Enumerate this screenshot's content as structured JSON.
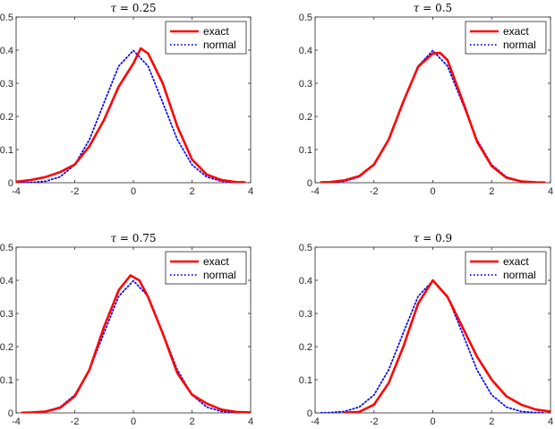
{
  "chart_data": [
    {
      "type": "line",
      "title_symbol": "τ",
      "title_value": "= 0.25",
      "xlim": [
        -4,
        4
      ],
      "ylim": [
        0,
        0.5
      ],
      "xticks": [
        "-4",
        "-2",
        "0",
        "2",
        "4"
      ],
      "yticks": [
        "0",
        "0.1",
        "0.2",
        "0.3",
        "0.4",
        "0.5"
      ],
      "legend": [
        "exact",
        "normal"
      ],
      "series": [
        {
          "name": "exact",
          "color": "#ff0000",
          "style": "solid",
          "x": [
            -4,
            -3.5,
            -3,
            -2.5,
            -2,
            -1.5,
            -1,
            -0.5,
            0,
            0.25,
            0.5,
            1,
            1.5,
            2,
            2.5,
            3,
            3.5,
            3.8
          ],
          "y": [
            0.003,
            0.008,
            0.017,
            0.032,
            0.055,
            0.11,
            0.19,
            0.29,
            0.36,
            0.405,
            0.39,
            0.3,
            0.17,
            0.07,
            0.025,
            0.008,
            0.002,
            0.001
          ]
        },
        {
          "name": "normal",
          "color": "#0000ff",
          "style": "dotted",
          "x": [
            -4,
            -3.5,
            -3,
            -2.5,
            -2,
            -1.5,
            -1,
            -0.5,
            0,
            0.5,
            1,
            1.5,
            2,
            2.5,
            3,
            3.5,
            3.8
          ],
          "y": [
            0.0001,
            0.0009,
            0.0044,
            0.0175,
            0.054,
            0.13,
            0.242,
            0.352,
            0.399,
            0.352,
            0.242,
            0.13,
            0.054,
            0.0175,
            0.0044,
            0.0009,
            0.0003
          ]
        }
      ]
    },
    {
      "type": "line",
      "title_symbol": "τ",
      "title_value": "= 0.5",
      "xlim": [
        -4,
        4
      ],
      "ylim": [
        0,
        0.5
      ],
      "xticks": [
        "-4",
        "-2",
        "0",
        "2",
        "4"
      ],
      "yticks": [
        "0",
        "0.1",
        "0.2",
        "0.3",
        "0.4",
        "0.5"
      ],
      "legend": [
        "exact",
        "normal"
      ],
      "series": [
        {
          "name": "exact",
          "color": "#ff0000",
          "style": "solid",
          "x": [
            -3.8,
            -3.5,
            -3,
            -2.5,
            -2,
            -1.5,
            -1,
            -0.5,
            0,
            0.25,
            0.5,
            1,
            1.5,
            2,
            2.5,
            3,
            3.5,
            3.8
          ],
          "y": [
            0.001,
            0.002,
            0.007,
            0.02,
            0.055,
            0.13,
            0.245,
            0.35,
            0.39,
            0.392,
            0.37,
            0.25,
            0.125,
            0.05,
            0.015,
            0.004,
            0.001,
            0.0005
          ]
        },
        {
          "name": "normal",
          "color": "#0000ff",
          "style": "dotted",
          "x": [
            -3.8,
            -3.5,
            -3,
            -2.5,
            -2,
            -1.5,
            -1,
            -0.5,
            0,
            0.5,
            1,
            1.5,
            2,
            2.5,
            3,
            3.5,
            3.8
          ],
          "y": [
            0.0003,
            0.0009,
            0.0044,
            0.0175,
            0.054,
            0.13,
            0.242,
            0.352,
            0.399,
            0.352,
            0.242,
            0.13,
            0.054,
            0.0175,
            0.0044,
            0.0009,
            0.0003
          ]
        }
      ]
    },
    {
      "type": "line",
      "title_symbol": "τ",
      "title_value": "= 0.75",
      "xlim": [
        -4,
        4
      ],
      "ylim": [
        0,
        0.5
      ],
      "xticks": [
        "-4",
        "-2",
        "0",
        "2",
        "4"
      ],
      "yticks": [
        "0",
        "0.1",
        "0.2",
        "0.3",
        "0.4",
        "0.5"
      ],
      "legend": [
        "exact",
        "normal"
      ],
      "series": [
        {
          "name": "exact",
          "color": "#ff0000",
          "style": "solid",
          "x": [
            -3.8,
            -3.5,
            -3,
            -2.5,
            -2,
            -1.5,
            -1,
            -0.5,
            -0.1,
            0.2,
            0.5,
            1,
            1.5,
            2,
            2.5,
            3,
            3.5,
            4
          ],
          "y": [
            0.0005,
            0.001,
            0.004,
            0.015,
            0.05,
            0.13,
            0.26,
            0.37,
            0.415,
            0.4,
            0.35,
            0.24,
            0.12,
            0.055,
            0.028,
            0.01,
            0.003,
            0.001
          ]
        },
        {
          "name": "normal",
          "color": "#0000ff",
          "style": "dotted",
          "x": [
            -3.8,
            -3.5,
            -3,
            -2.5,
            -2,
            -1.5,
            -1,
            -0.5,
            0,
            0.5,
            1,
            1.5,
            2,
            2.5,
            3,
            3.5,
            3.8
          ],
          "y": [
            0.0003,
            0.0009,
            0.0044,
            0.0175,
            0.054,
            0.13,
            0.242,
            0.352,
            0.399,
            0.352,
            0.242,
            0.13,
            0.054,
            0.0175,
            0.0044,
            0.0009,
            0.0003
          ]
        }
      ]
    },
    {
      "type": "line",
      "title_symbol": "τ",
      "title_value": "= 0.9",
      "xlim": [
        -4,
        4
      ],
      "ylim": [
        0,
        0.5
      ],
      "xticks": [
        "-4",
        "-2",
        "0",
        "2",
        "4"
      ],
      "yticks": [
        "0",
        "0.1",
        "0.2",
        "0.3",
        "0.4",
        "0.5"
      ],
      "legend": [
        "exact",
        "normal"
      ],
      "series": [
        {
          "name": "exact",
          "color": "#ff0000",
          "style": "solid",
          "x": [
            -3,
            -2.5,
            -2,
            -1.5,
            -1,
            -0.5,
            0,
            0.5,
            1,
            1.5,
            2,
            2.5,
            3,
            3.5,
            4
          ],
          "y": [
            0.0005,
            0.003,
            0.025,
            0.09,
            0.2,
            0.33,
            0.4,
            0.35,
            0.26,
            0.17,
            0.1,
            0.05,
            0.025,
            0.01,
            0.004
          ]
        },
        {
          "name": "normal",
          "color": "#0000ff",
          "style": "dotted",
          "x": [
            -3.8,
            -3.5,
            -3,
            -2.5,
            -2,
            -1.5,
            -1,
            -0.5,
            0,
            0.5,
            1,
            1.5,
            2,
            2.5,
            3,
            3.5,
            3.8
          ],
          "y": [
            0.0003,
            0.0009,
            0.0044,
            0.0175,
            0.054,
            0.13,
            0.242,
            0.352,
            0.399,
            0.352,
            0.242,
            0.13,
            0.054,
            0.0175,
            0.0044,
            0.0009,
            0.0003
          ]
        }
      ]
    }
  ]
}
